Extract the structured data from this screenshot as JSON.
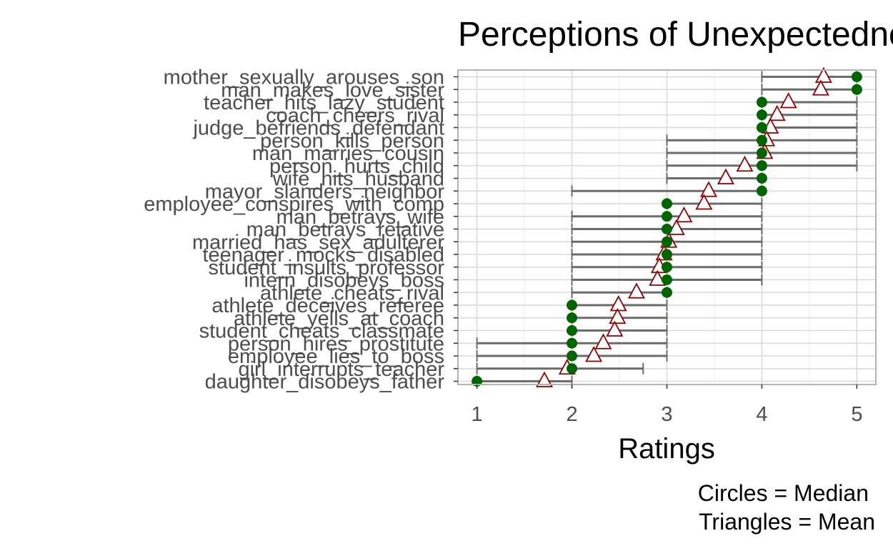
{
  "chart_data": {
    "type": "dot-range",
    "title": "Perceptions of Unexpectedness",
    "xlabel": "Ratings",
    "ylabel": "",
    "xlim": [
      0.8,
      5.2
    ],
    "x_ticks": [
      1,
      2,
      3,
      4,
      5
    ],
    "grid": true,
    "caption": [
      "Circles = Median",
      "Triangles = Mean"
    ],
    "colors": {
      "median_point": "#006400",
      "mean_marker": "#8b0000",
      "range_line": "#6b6b6b",
      "panel_border": "#b3b3b3",
      "grid_major": "#d9d9d9",
      "grid_minor": "#ececec"
    },
    "series": [
      {
        "name": "Median",
        "marker": "circle"
      },
      {
        "name": "Mean",
        "marker": "triangle"
      }
    ],
    "items": [
      {
        "label": "mother_sexually_arouses_son",
        "low": 4,
        "high": 5,
        "median": 5,
        "mean": 4.65
      },
      {
        "label": "man_makes_love_sister",
        "low": 4,
        "high": 5,
        "median": 5,
        "mean": 4.62
      },
      {
        "label": "teacher_hits_lazy_student",
        "low": 4,
        "high": 5,
        "median": 4,
        "mean": 4.28
      },
      {
        "label": "coach_cheers_rival",
        "low": 4,
        "high": 5,
        "median": 4,
        "mean": 4.16
      },
      {
        "label": "judge_befriends_defendant",
        "low": 4,
        "high": 5,
        "median": 4,
        "mean": 4.09
      },
      {
        "label": "person_kills_person",
        "low": 3,
        "high": 5,
        "median": 4,
        "mean": 4.05
      },
      {
        "label": "man_marries_cousin",
        "low": 3,
        "high": 5,
        "median": 4,
        "mean": 4.03
      },
      {
        "label": "person_hurts_child",
        "low": 3,
        "high": 5,
        "median": 4,
        "mean": 3.82
      },
      {
        "label": "wife_hits_husband",
        "low": 3,
        "high": 4,
        "median": 4,
        "mean": 3.62
      },
      {
        "label": "mayor_slanders_neighbor",
        "low": 2,
        "high": 4,
        "median": 4,
        "mean": 3.44
      },
      {
        "label": "employee_conspires_with_comp",
        "low": 3,
        "high": 4,
        "median": 3,
        "mean": 3.39
      },
      {
        "label": "man_betrays_wife",
        "low": 2,
        "high": 4,
        "median": 3,
        "mean": 3.18
      },
      {
        "label": "man_betrays_relative",
        "low": 2,
        "high": 4,
        "median": 3,
        "mean": 3.1
      },
      {
        "label": "married_has_sex_adulterer",
        "low": 2,
        "high": 4,
        "median": 3,
        "mean": 3.02
      },
      {
        "label": "teenager_mocks_disabled",
        "low": 2,
        "high": 4,
        "median": 3,
        "mean": 2.97
      },
      {
        "label": "student_insults_professor",
        "low": 2,
        "high": 4,
        "median": 3,
        "mean": 2.92
      },
      {
        "label": "intern_disobeys_boss",
        "low": 2,
        "high": 4,
        "median": 3,
        "mean": 2.9
      },
      {
        "label": "athlete_cheats_rival",
        "low": 2,
        "high": 3,
        "median": 3,
        "mean": 2.68
      },
      {
        "label": "athlete_deceives_referee",
        "low": 2,
        "high": 3,
        "median": 2,
        "mean": 2.49
      },
      {
        "label": "athlete_yells_at_coach",
        "low": 2,
        "high": 3,
        "median": 2,
        "mean": 2.48
      },
      {
        "label": "student_cheats_classmate",
        "low": 2,
        "high": 3,
        "median": 2,
        "mean": 2.45
      },
      {
        "label": "person_hires_prostitute",
        "low": 1,
        "high": 3,
        "median": 2,
        "mean": 2.33
      },
      {
        "label": "employee_lies_to_boss",
        "low": 1,
        "high": 3,
        "median": 2,
        "mean": 2.23
      },
      {
        "label": "girl_interrupts_teacher",
        "low": 1,
        "high": 2.75,
        "median": 2,
        "mean": 1.95
      },
      {
        "label": "daughter_disobeys_father",
        "low": 1,
        "high": 2,
        "median": 1,
        "mean": 1.71
      }
    ]
  }
}
